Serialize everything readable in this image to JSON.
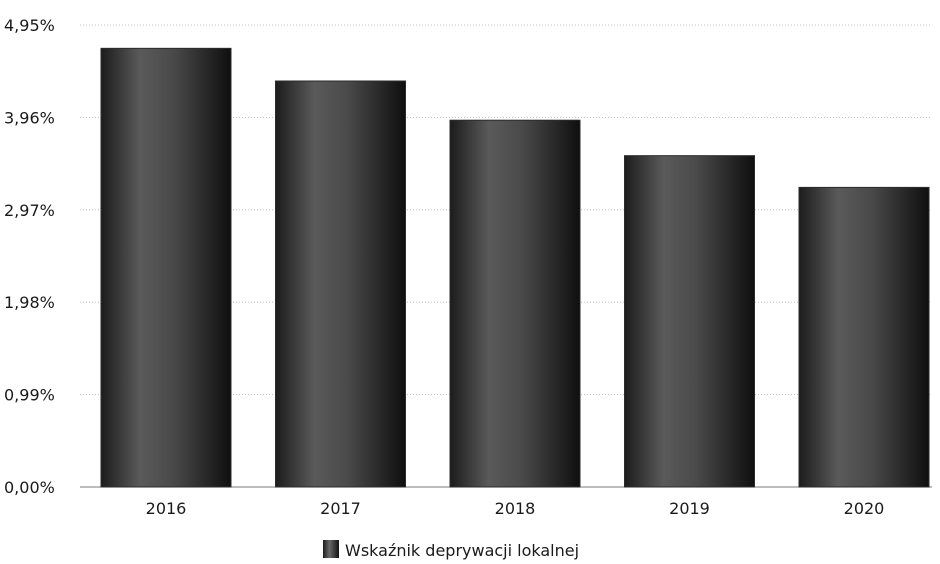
{
  "chart_data": {
    "type": "bar",
    "categories": [
      "2016",
      "2017",
      "2018",
      "2019",
      "2020"
    ],
    "series": [
      {
        "name": "Wskaźnik deprywacji lokalnej",
        "values": [
          4.7,
          4.35,
          3.93,
          3.55,
          3.21
        ]
      }
    ],
    "y_ticks": [
      "0,00%",
      "0,99%",
      "1,98%",
      "2,97%",
      "3,96%",
      "4,95%"
    ],
    "y_tick_values": [
      0,
      0.99,
      1.98,
      2.97,
      3.96,
      4.95
    ],
    "ylim": [
      0,
      4.95
    ],
    "grid": true,
    "legend_position": "bottom-center",
    "colors": {
      "bar_edge": "#2b2b2b",
      "bar_mid": "#6e6e6e",
      "bar_dark": "#141414",
      "grid": "#bdbdbd",
      "axis": "#7a7a7a",
      "text": "#1a1a1a"
    }
  }
}
